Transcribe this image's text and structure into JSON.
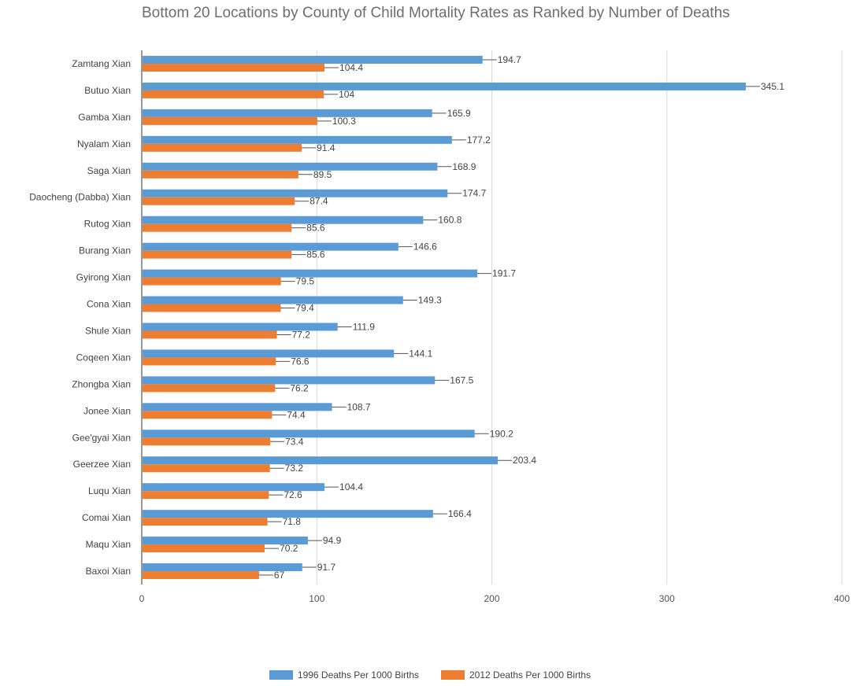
{
  "chart_data": {
    "type": "bar",
    "orientation": "horizontal",
    "title": "Bottom 20 Locations by County of Child Mortality Rates as Ranked by Number of Deaths",
    "categories": [
      "Zamtang Xian",
      "Butuo Xian",
      "Gamba Xian",
      "Nyalam Xian",
      "Saga Xian",
      "Daocheng (Dabba) Xian",
      "Rutog Xian",
      "Burang Xian",
      "Gyirong Xian",
      "Cona Xian",
      "Shule Xian",
      "Coqeen Xian",
      "Zhongba Xian",
      "Jonee Xian",
      "Gee'gyai Xian",
      "Geerzee Xian",
      "Luqu Xian",
      "Comai Xian",
      "Maqu Xian",
      "Baxoi Xian"
    ],
    "series": [
      {
        "name": "1996 Deaths Per 1000 Births",
        "color": "#5b9bd5",
        "values": [
          194.7,
          345.1,
          165.9,
          177.2,
          168.9,
          174.7,
          160.8,
          146.6,
          191.7,
          149.3,
          111.9,
          144.1,
          167.5,
          108.7,
          190.2,
          203.4,
          104.4,
          166.4,
          94.9,
          91.7
        ],
        "labels": [
          "194.7",
          "345.1",
          "165.9",
          "177.2",
          "168.9",
          "174.7",
          "160.8",
          "146.6",
          "191.7",
          "149.3",
          "111.9",
          "144.1",
          "167.5",
          "108.7",
          "190.2",
          "203.4",
          "104.4",
          "166.4",
          "94.9",
          "91.7"
        ]
      },
      {
        "name": "2012 Deaths Per 1000 Births",
        "color": "#ed7d31",
        "values": [
          104.4,
          104,
          100.3,
          91.4,
          89.5,
          87.4,
          85.6,
          85.6,
          79.5,
          79.4,
          77.2,
          76.6,
          76.2,
          74.4,
          73.4,
          73.2,
          72.6,
          71.8,
          70.2,
          67
        ],
        "labels": [
          "104.4",
          "104",
          "100.3",
          "91.4",
          "89.5",
          "87.4",
          "85.6",
          "85.6",
          "79.5",
          "79.4",
          "77.2",
          "76.6",
          "76.2",
          "74.4",
          "73.4",
          "73.2",
          "72.6",
          "71.8",
          "70.2",
          "67"
        ]
      }
    ],
    "xlim": [
      0,
      400
    ],
    "x_ticks": [
      0,
      100,
      200,
      300,
      400
    ],
    "x_tick_labels": [
      "0",
      "100",
      "200",
      "300",
      "400"
    ],
    "grid": true,
    "grid_color": "#d9d9d9",
    "legend_position": "bottom"
  }
}
